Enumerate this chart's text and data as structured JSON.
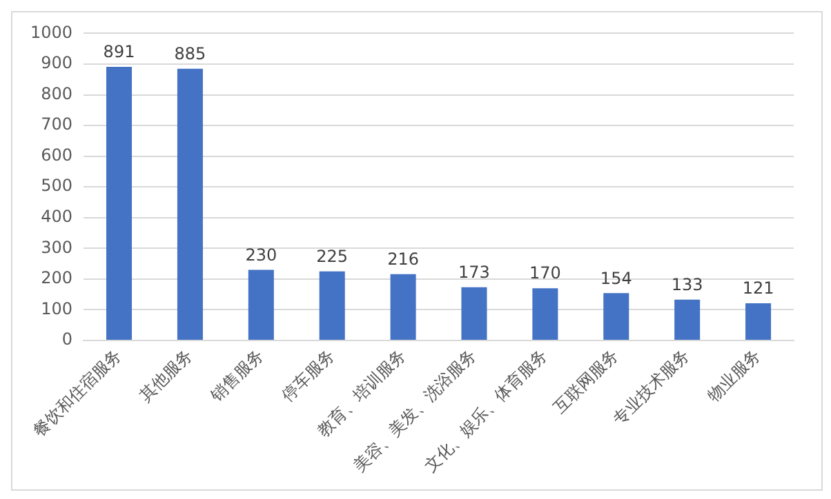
{
  "chart_data": {
    "type": "bar",
    "categories": [
      "餐饮和住宿服务",
      "其他服务",
      "销售服务",
      "停车服务",
      "教育、培训服务",
      "美容、美发、洗浴服务",
      "文化、娱乐、体育服务",
      "互联网服务",
      "专业技术服务",
      "物业服务"
    ],
    "values": [
      891,
      885,
      230,
      225,
      216,
      173,
      170,
      154,
      133,
      121
    ],
    "color": "#4472c4",
    "ylim": [
      0,
      1000
    ],
    "yticks": [
      0,
      100,
      200,
      300,
      400,
      500,
      600,
      700,
      800,
      900,
      1000
    ],
    "grid": "y",
    "data_labels": true,
    "legend": false
  }
}
